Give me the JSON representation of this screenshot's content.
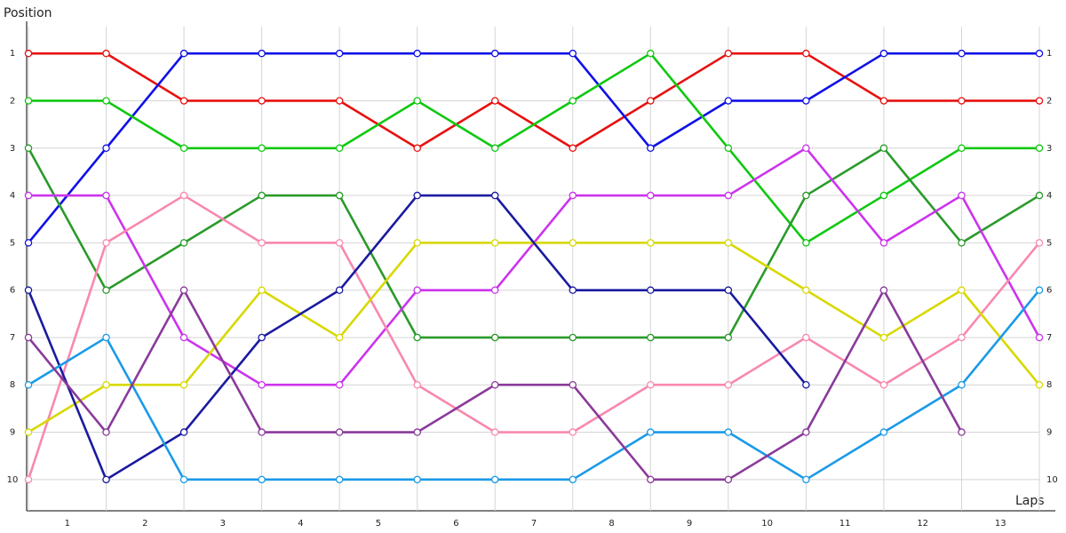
{
  "chart_data": {
    "type": "line",
    "y_label": "Position",
    "x_label": "Laps",
    "x": [
      0.5,
      1.5,
      2.5,
      3.5,
      4.5,
      5.5,
      6.5,
      7.5,
      8.5,
      9.5,
      10.5,
      11.5,
      12.5,
      13.5
    ],
    "xlim": [
      0.5,
      13.5
    ],
    "xticks": [
      1,
      2,
      3,
      4,
      5,
      6,
      7,
      8,
      9,
      10,
      11,
      12,
      13
    ],
    "ylim": [
      0.34,
      10.66
    ],
    "y_inverted": true,
    "yticks": [
      1,
      2,
      3,
      4,
      5,
      6,
      7,
      8,
      9,
      10
    ],
    "grid": true,
    "series": [
      {
        "color": "#e81010",
        "values": [
          1,
          1,
          2,
          2,
          2,
          3,
          2,
          3,
          2,
          1,
          1,
          2,
          2,
          2
        ]
      },
      {
        "color": "#1010e8",
        "values": [
          5,
          3,
          1,
          1,
          1,
          1,
          1,
          1,
          3,
          2,
          2,
          1,
          1,
          1
        ]
      },
      {
        "color": "#10c810",
        "values": [
          2,
          2,
          3,
          3,
          3,
          2,
          3,
          2,
          1,
          3,
          5,
          4,
          3,
          3
        ]
      },
      {
        "color": "#2a9a2a",
        "values": [
          3,
          6,
          5,
          4,
          4,
          7,
          7,
          7,
          7,
          7,
          4,
          3,
          5,
          4
        ]
      },
      {
        "color": "#cc33ee",
        "values": [
          4,
          4,
          7,
          8,
          8,
          6,
          6,
          4,
          4,
          4,
          3,
          5,
          4,
          7
        ]
      },
      {
        "color": "#f888b0",
        "values": [
          10,
          5,
          4,
          5,
          5,
          8,
          9,
          9,
          8,
          8,
          7,
          8,
          7,
          5
        ]
      },
      {
        "color": "#d8d800",
        "values": [
          9,
          8,
          8,
          6,
          7,
          5,
          5,
          5,
          5,
          5,
          6,
          7,
          6,
          8
        ]
      },
      {
        "color": "#1a1aa0",
        "values": [
          6,
          10,
          9,
          7,
          6,
          4,
          4,
          6,
          6,
          6,
          8,
          null,
          null,
          null
        ]
      },
      {
        "color": "#1a9ae8",
        "values": [
          8,
          7,
          10,
          10,
          10,
          10,
          10,
          10,
          9,
          9,
          10,
          9,
          8,
          6
        ]
      },
      {
        "color": "#8a3a9a",
        "values": [
          7,
          9,
          6,
          9,
          9,
          9,
          8,
          8,
          10,
          10,
          9,
          6,
          9,
          null
        ]
      }
    ]
  }
}
